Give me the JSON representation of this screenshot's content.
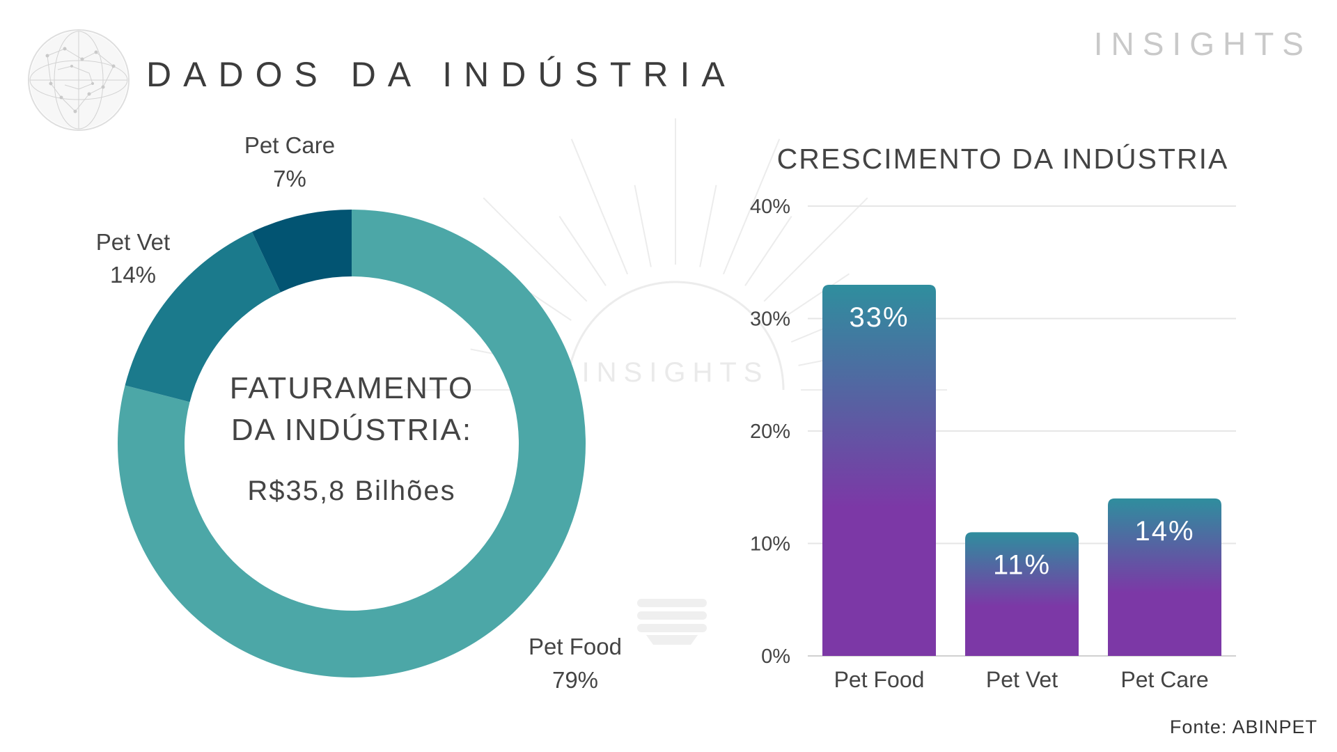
{
  "header": {
    "title": "DADOS DA INDÚSTRIA",
    "brand": "INSIGHTS",
    "watermark": "INSIGHTS"
  },
  "footer": {
    "source": "Fonte: ABINPET"
  },
  "colors": {
    "pet_food_slice": "#4ca7a7",
    "pet_vet_slice": "#1b7a8c",
    "pet_care_slice": "#025472",
    "bar_top": "#2f8e9e",
    "bar_bottom": "#7c38a6",
    "grid": "#e6e6e6",
    "text": "#444444"
  },
  "chart_data": [
    {
      "type": "pie",
      "variant": "donut",
      "center_text": {
        "line1": "FATURAMENTO",
        "line2": "DA INDÚSTRIA:",
        "value": "R$35,8 Bilhões"
      },
      "slices": [
        {
          "label": "Pet Food",
          "value": 79,
          "value_label": "79%"
        },
        {
          "label": "Pet Vet",
          "value": 14,
          "value_label": "14%"
        },
        {
          "label": "Pet Care",
          "value": 7,
          "value_label": "7%"
        }
      ]
    },
    {
      "type": "bar",
      "title": "CRESCIMENTO DA INDÚSTRIA",
      "categories": [
        "Pet Food",
        "Pet Vet",
        "Pet Care"
      ],
      "values": [
        33,
        11,
        14
      ],
      "data_labels": [
        "33%",
        "11%",
        "14%"
      ],
      "ylim": [
        0,
        40
      ],
      "yticks": [
        "0%",
        "10%",
        "20%",
        "30%",
        "40%"
      ],
      "grid": true,
      "legend": "none"
    }
  ]
}
